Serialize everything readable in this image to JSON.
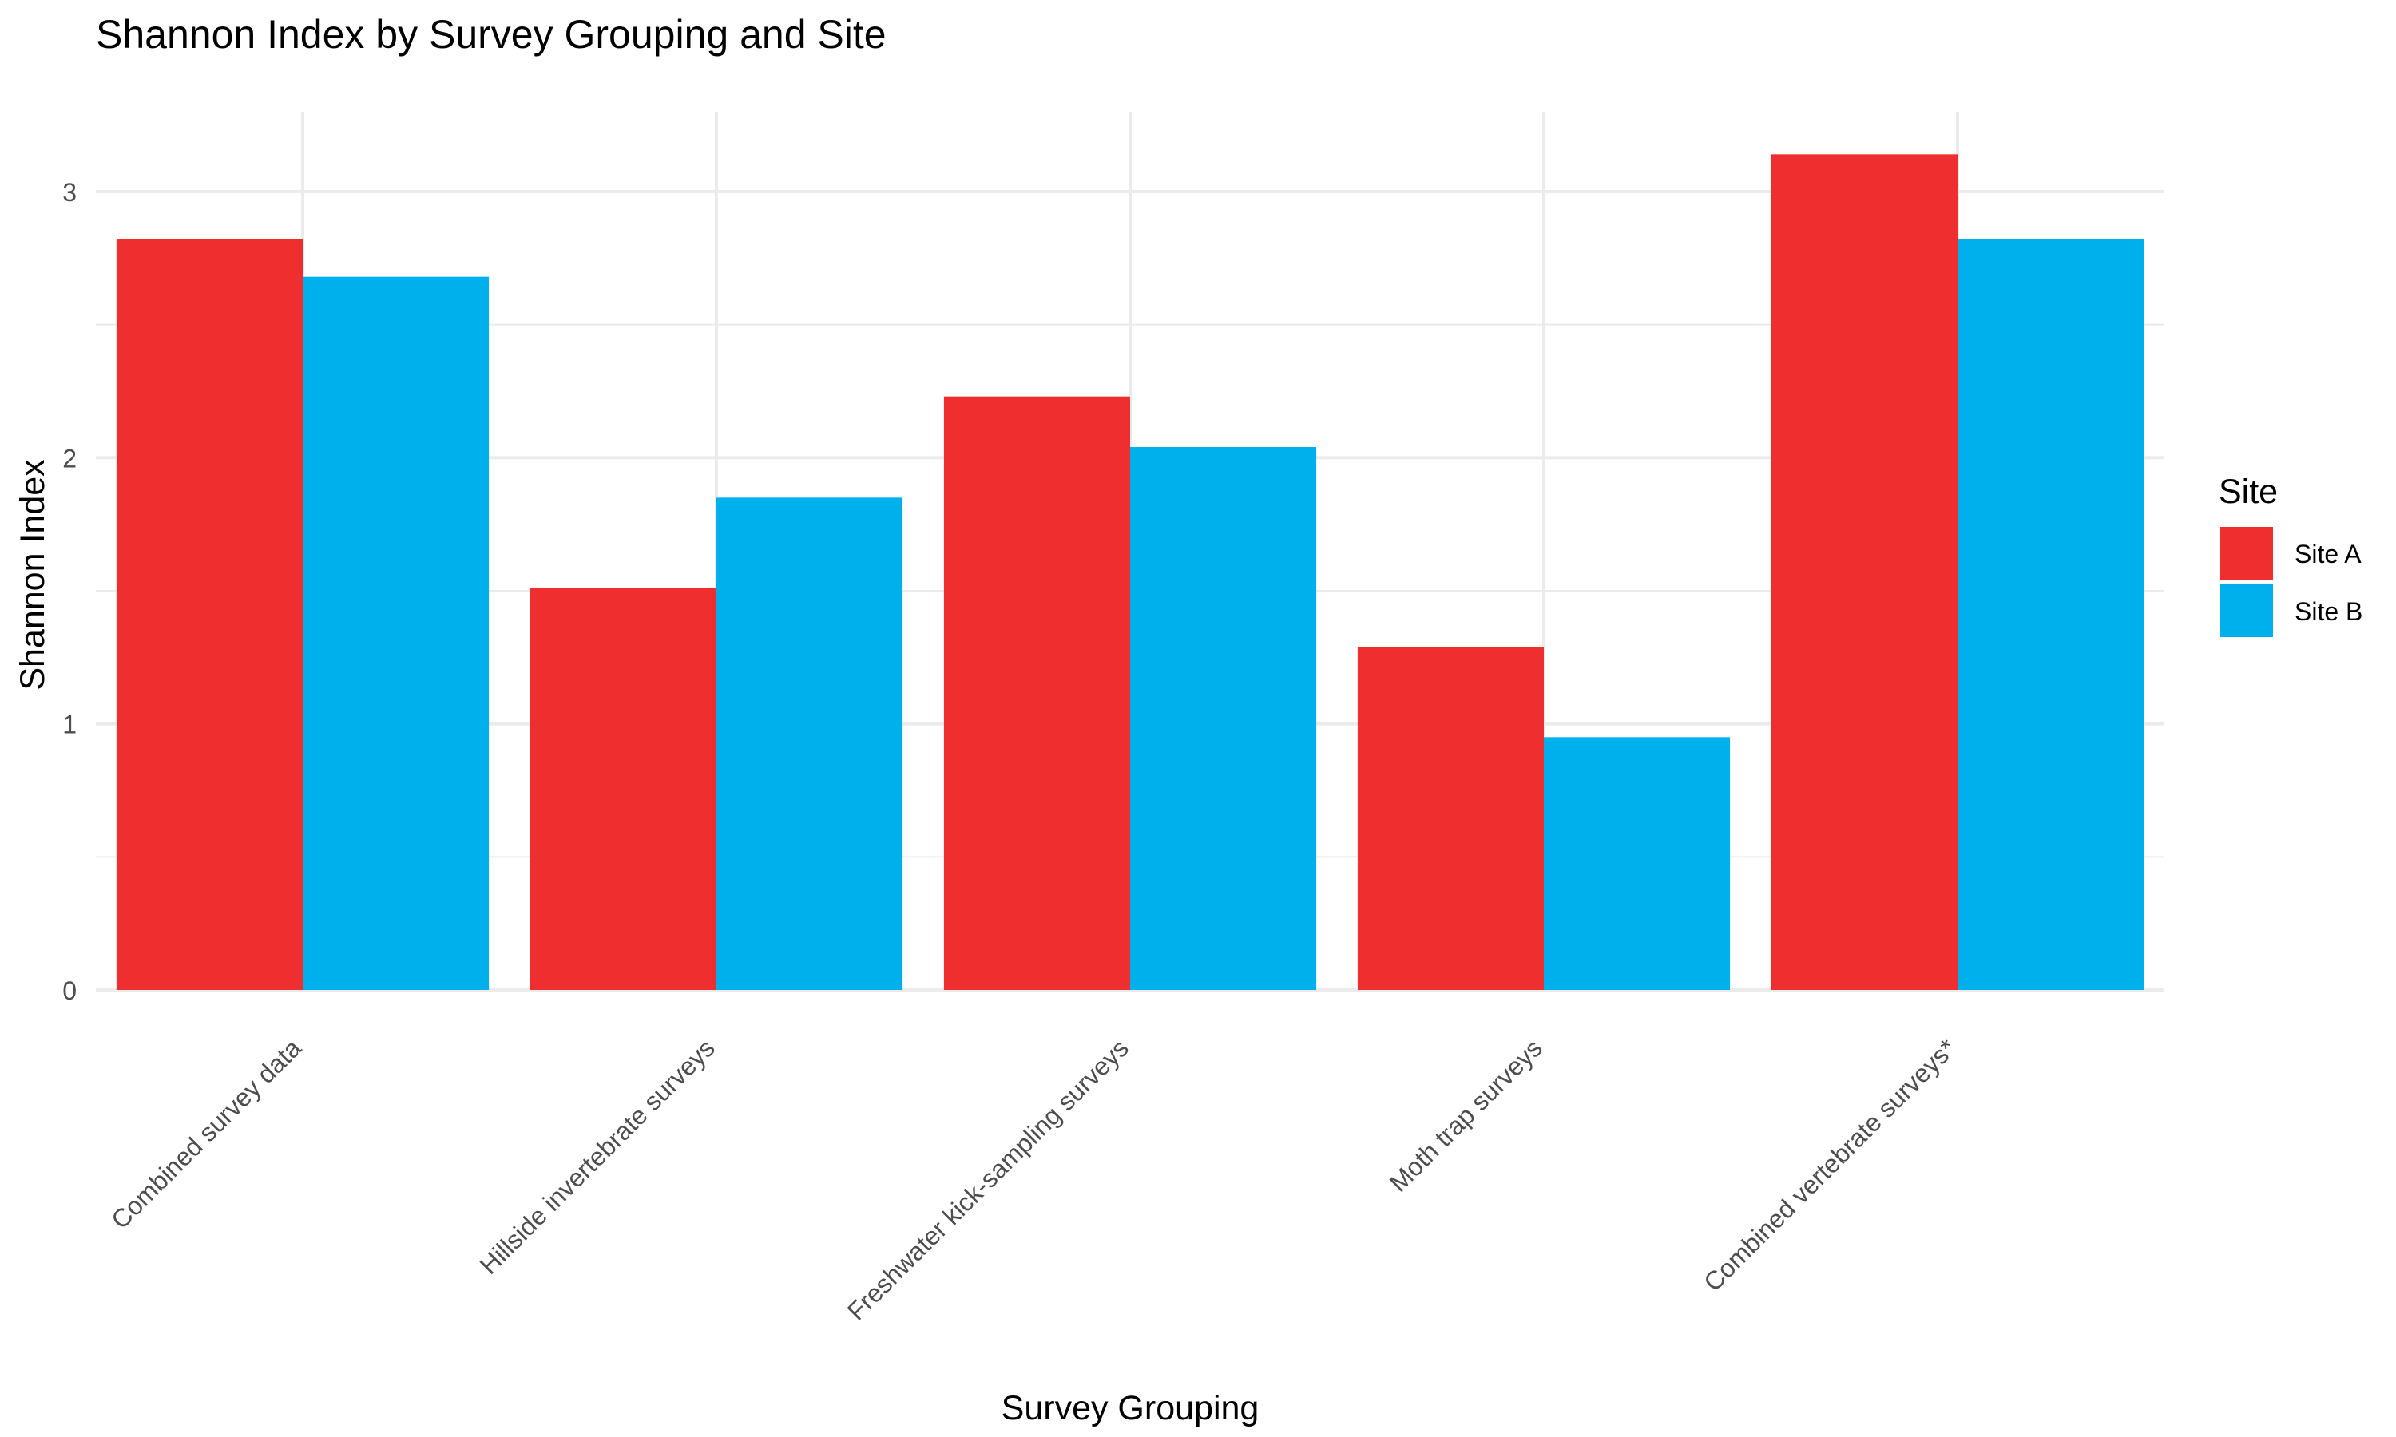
{
  "chart_data": {
    "type": "bar",
    "title": "Shannon Index by Survey Grouping and Site",
    "xlabel": "Survey Grouping",
    "ylabel": "Shannon Index",
    "categories": [
      "Combined survey data",
      "Hillside invertebrate surveys",
      "Freshwater kick-sampling surveys",
      "Moth trap surveys",
      "Combined vertebrate surveys*"
    ],
    "series": [
      {
        "name": "Site A",
        "color": "#EE2E2F",
        "values": [
          2.82,
          1.51,
          2.23,
          1.29,
          3.14
        ]
      },
      {
        "name": "Site B",
        "color": "#00B0EC",
        "values": [
          2.68,
          1.85,
          2.04,
          0.95,
          2.82
        ]
      }
    ],
    "ylim": [
      0,
      3.3
    ],
    "yticks": [
      0,
      1,
      2,
      3
    ],
    "grid": true,
    "legend": {
      "title": "Site",
      "position": "right"
    }
  }
}
